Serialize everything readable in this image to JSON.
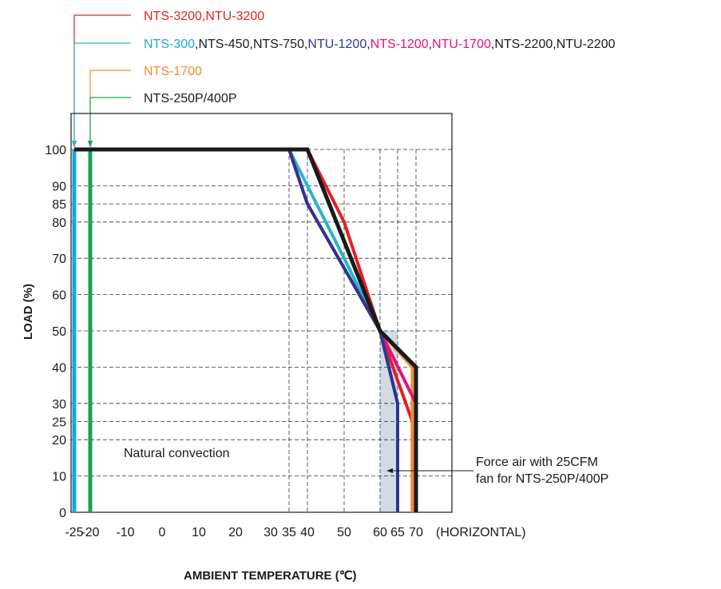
{
  "chart_data": {
    "type": "line",
    "xlabel": "AMBIENT TEMPERATURE (℃)",
    "ylabel": "LOAD (%)",
    "x_ticks": [
      -25,
      -20,
      -10,
      0,
      10,
      20,
      30,
      35,
      40,
      50,
      60,
      65,
      70
    ],
    "y_ticks": [
      0,
      10,
      20,
      25,
      30,
      40,
      50,
      60,
      70,
      80,
      85,
      90,
      100
    ],
    "x_unit_label": "(HORIZONTAL)",
    "xlim": [
      -25,
      70
    ],
    "ylim": [
      0,
      100
    ],
    "annotations": {
      "natural": "Natural convection",
      "force_air_line1": "Force air with 25CFM",
      "force_air_line2": "fan for NTS-250P/400P"
    },
    "legend": [
      {
        "parts": [
          {
            "text": "NTS-3200,NTU-3200",
            "color": "#e41f26"
          }
        ],
        "line_color": "#e41f26",
        "arrow_x": -25
      },
      {
        "parts": [
          {
            "text": "NTS-300",
            "color": "#1ba6dd"
          },
          {
            "text": ",NTS-450,NTS-750,",
            "color": "#1a1a1a"
          },
          {
            "text": "NTU-1200",
            "color": "#2e3592"
          },
          {
            "text": ",",
            "color": "#1a1a1a"
          },
          {
            "text": "NTS-1200",
            "color": "#e4117f"
          },
          {
            "text": ",",
            "color": "#1a1a1a"
          },
          {
            "text": "NTU-1700",
            "color": "#e4117f"
          },
          {
            "text": ",NTS-2200,NTU-2200",
            "color": "#1a1a1a"
          }
        ],
        "line_color": "#26b6c9",
        "arrow_x": -25
      },
      {
        "parts": [
          {
            "text": "NTS-1700",
            "color": "#f18d2c"
          }
        ],
        "line_color": "#f18d2c",
        "arrow_x": -20
      },
      {
        "parts": [
          {
            "text": "NTS-250P/400P",
            "color": "#1a1a1a"
          }
        ],
        "line_color": "#1aa157",
        "arrow_x": -20
      }
    ],
    "series": [
      {
        "color": "#e41f26",
        "points": [
          [
            40,
            100
          ],
          [
            50,
            80
          ],
          [
            60,
            50
          ],
          [
            69,
            25
          ],
          [
            69,
            0
          ]
        ]
      },
      {
        "color": "#26b6c9",
        "points": [
          [
            35,
            100
          ],
          [
            40,
            90
          ],
          [
            50,
            70
          ],
          [
            60,
            50
          ],
          [
            65,
            30
          ],
          [
            65,
            0
          ]
        ]
      },
      {
        "color": "#f18d2c",
        "points": [
          [
            35,
            100
          ],
          [
            40,
            85
          ],
          [
            60,
            50
          ],
          [
            69,
            40
          ],
          [
            69,
            0
          ]
        ]
      },
      {
        "color": "#e4117f",
        "points": [
          [
            35,
            100
          ],
          [
            40,
            85
          ],
          [
            60,
            50
          ],
          [
            70,
            30
          ],
          [
            70,
            0
          ]
        ]
      },
      {
        "color": "#2e3592",
        "points": [
          [
            35,
            100
          ],
          [
            40,
            85
          ],
          [
            60,
            50
          ],
          [
            65,
            30
          ],
          [
            65,
            0
          ]
        ]
      },
      {
        "color": "#1a1a1a",
        "points": [
          [
            -25,
            100
          ],
          [
            40,
            100
          ],
          [
            60,
            50
          ],
          [
            70,
            40
          ],
          [
            70,
            0
          ]
        ]
      }
    ],
    "vertical_bars": [
      {
        "color": "#1ba6dd",
        "x": -25
      },
      {
        "color": "#1aa157",
        "x": -20
      }
    ],
    "shaded_region": {
      "x": [
        60,
        65
      ],
      "y": [
        0,
        50
      ],
      "color": "#d3dae3"
    }
  }
}
